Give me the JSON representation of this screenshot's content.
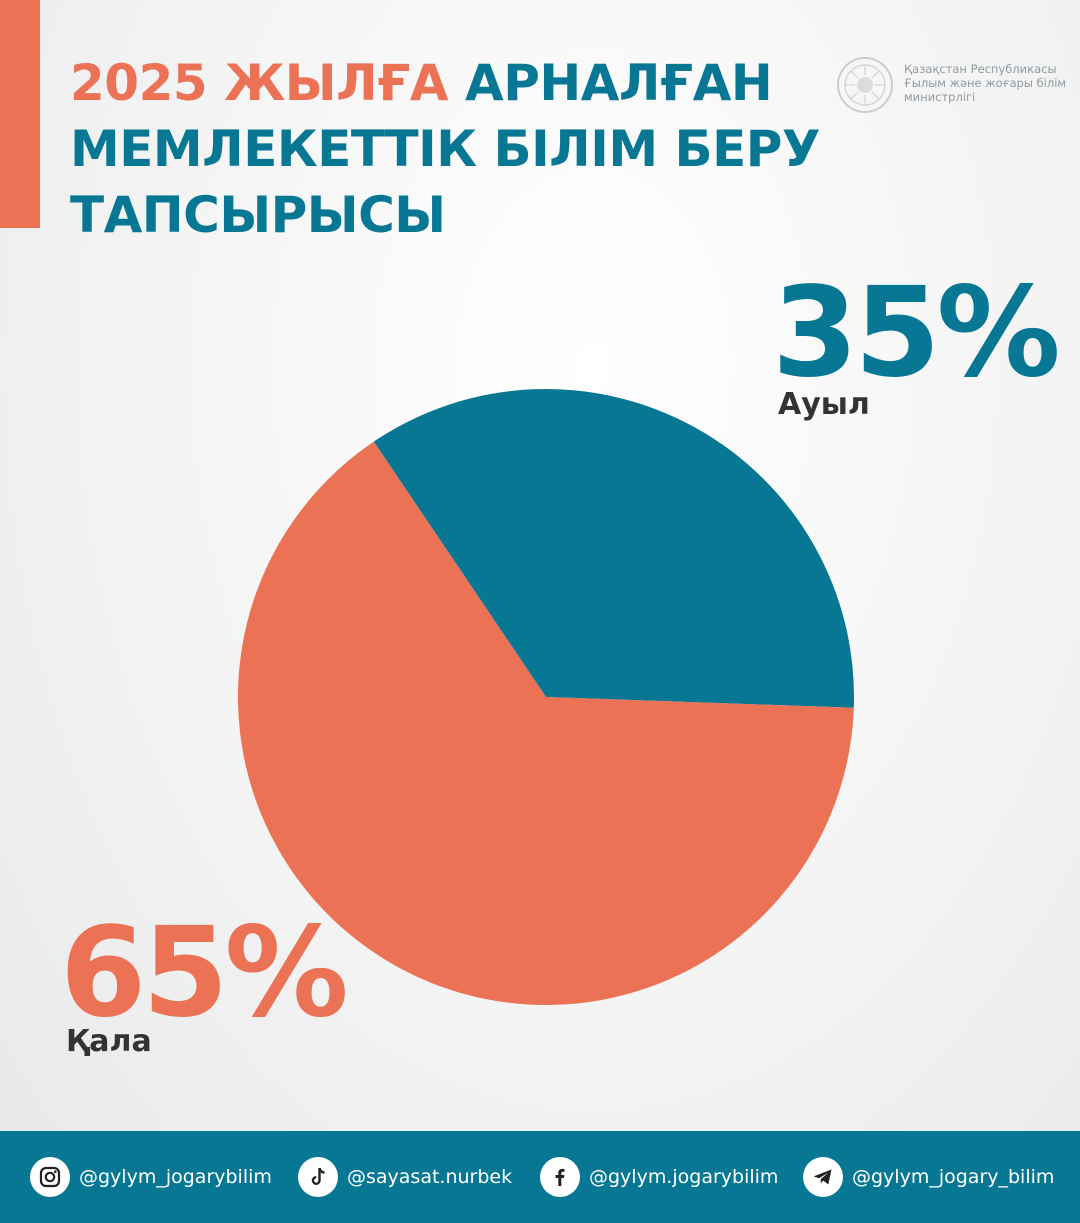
{
  "header": {
    "title_highlight": "2025 ЖЫЛҒА",
    "title_line1_rest": "АРНАЛҒАН",
    "title_line2": "МЕМЛЕКЕТТІК БІЛІМ БЕРУ",
    "title_line3": "ТАПСЫРЫСЫ",
    "ministry_line1": "Қазақстан Республикасы",
    "ministry_line2": "Ғылым және жоғары білім",
    "ministry_line3": "министрлігі"
  },
  "colors": {
    "urban": "#EB7254",
    "rural": "#077794",
    "accent": "#EB7254",
    "footer": "#077794"
  },
  "chart_data": {
    "type": "pie",
    "title": "2025 ЖЫЛҒА АРНАЛҒАН МЕМЛЕКЕТТІК БІЛІМ БЕРУ ТАПСЫРЫСЫ",
    "categories": [
      "Ауыл",
      "Қала"
    ],
    "values": [
      35,
      65
    ],
    "labels": [
      "35%",
      "65%"
    ],
    "colors": [
      "#077794",
      "#EB7254"
    ]
  },
  "footer": {
    "socials": [
      {
        "icon": "instagram-icon",
        "handle": "@gylym_jogarybilim"
      },
      {
        "icon": "tiktok-icon",
        "handle": "@sayasat.nurbek"
      },
      {
        "icon": "facebook-icon",
        "handle": "@gylym.jogarybilim"
      },
      {
        "icon": "telegram-icon",
        "handle": "@gylym_jogary_bilim"
      }
    ]
  }
}
